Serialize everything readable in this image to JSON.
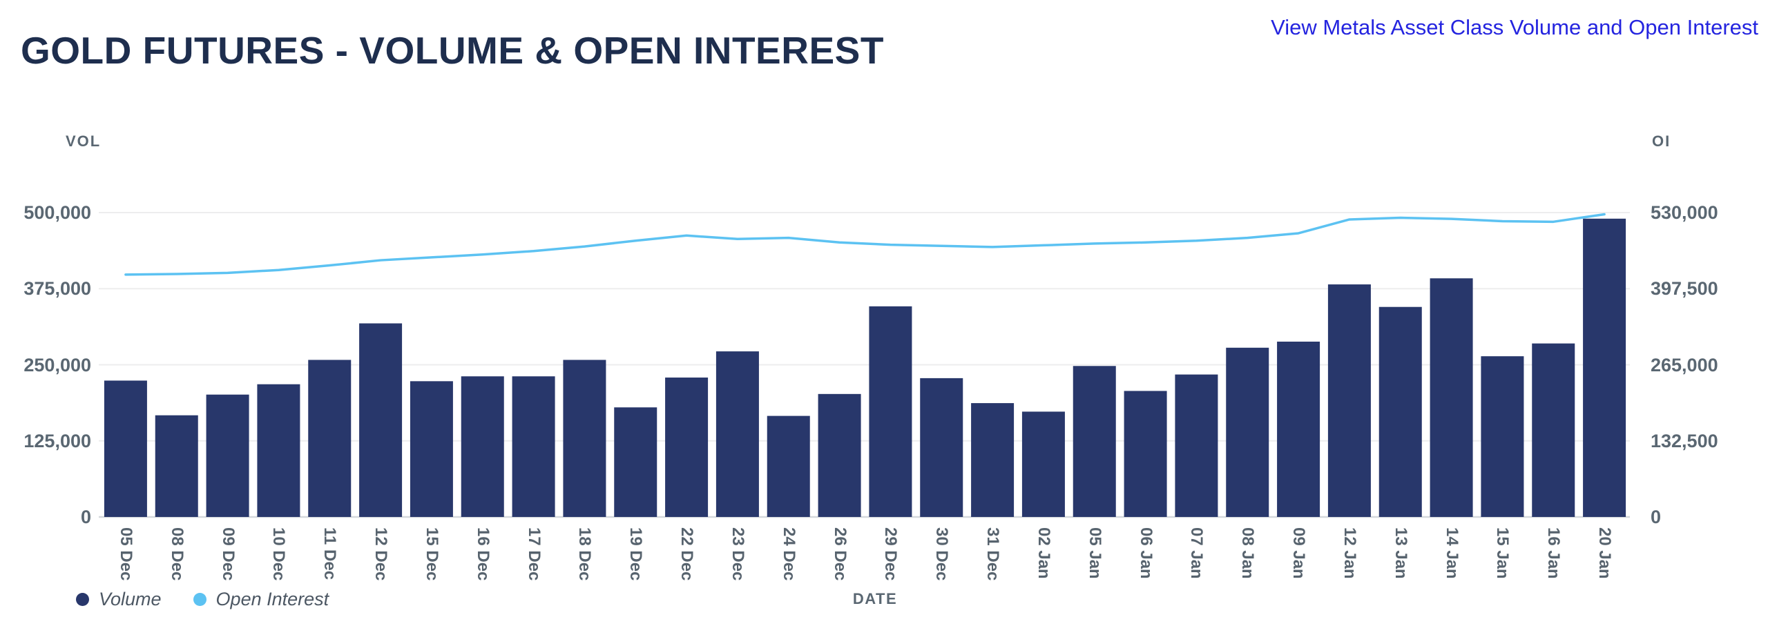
{
  "page": {
    "title": "GOLD FUTURES - VOLUME & OPEN INTEREST",
    "link_label": "View Metals Asset Class Volume and Open Interest"
  },
  "chart": {
    "left_axis_label": "VOL",
    "right_axis_label": "OI",
    "x_axis_label": "DATE",
    "legend": [
      {
        "label": "Volume",
        "color": "#28376b"
      },
      {
        "label": "Open Interest",
        "color": "#5cc2f2"
      }
    ]
  },
  "chart_data": {
    "type": "bar",
    "subtype": "combo-bar-line-dual-axis",
    "title": "GOLD FUTURES - VOLUME & OPEN INTEREST",
    "xlabel": "DATE",
    "grid": true,
    "legend_position": "bottom-left",
    "categories": [
      "05 Dec",
      "08 Dec",
      "09 Dec",
      "10 Dec",
      "11 Dec",
      "12 Dec",
      "15 Dec",
      "16 Dec",
      "17 Dec",
      "18 Dec",
      "19 Dec",
      "22 Dec",
      "23 Dec",
      "24 Dec",
      "26 Dec",
      "29 Dec",
      "30 Dec",
      "31 Dec",
      "02 Jan",
      "05 Jan",
      "06 Jan",
      "07 Jan",
      "08 Jan",
      "09 Jan",
      "12 Jan",
      "13 Jan",
      "14 Jan",
      "15 Jan",
      "16 Jan",
      "20 Jan"
    ],
    "series": [
      {
        "name": "Volume",
        "type": "bar",
        "axis": "left",
        "color": "#28376b",
        "values": [
          224000,
          167000,
          201000,
          218000,
          258000,
          318000,
          223000,
          231000,
          231000,
          258000,
          180000,
          229000,
          272000,
          166000,
          202000,
          346000,
          228000,
          187000,
          173000,
          248000,
          207000,
          234000,
          278000,
          288000,
          382000,
          345000,
          392000,
          264000,
          285000,
          490000
        ]
      },
      {
        "name": "Open Interest",
        "type": "line",
        "axis": "right",
        "color": "#5cc2f2",
        "values": [
          422000,
          423000,
          425000,
          430000,
          438000,
          447000,
          452000,
          457000,
          463000,
          471000,
          481000,
          490000,
          484000,
          486000,
          478000,
          474000,
          472000,
          470000,
          473000,
          476000,
          478000,
          481000,
          486000,
          494000,
          518000,
          521000,
          519000,
          515000,
          514000,
          527000
        ]
      }
    ],
    "left_axis": {
      "title": "VOL",
      "range": [
        0,
        500000
      ],
      "ticks": [
        0,
        125000,
        250000,
        375000,
        500000
      ]
    },
    "right_axis": {
      "title": "OI",
      "range": [
        0,
        530000
      ],
      "ticks": [
        0,
        132500,
        265000,
        397500,
        530000
      ]
    },
    "colors": {
      "title_text": "#1e2e4e",
      "link_text": "#2424df",
      "axis_text": "#5a6772",
      "bar": "#28376b",
      "line": "#5cc2f2",
      "gridline": "#ededee",
      "baseline": "#d5d8dc"
    }
  }
}
